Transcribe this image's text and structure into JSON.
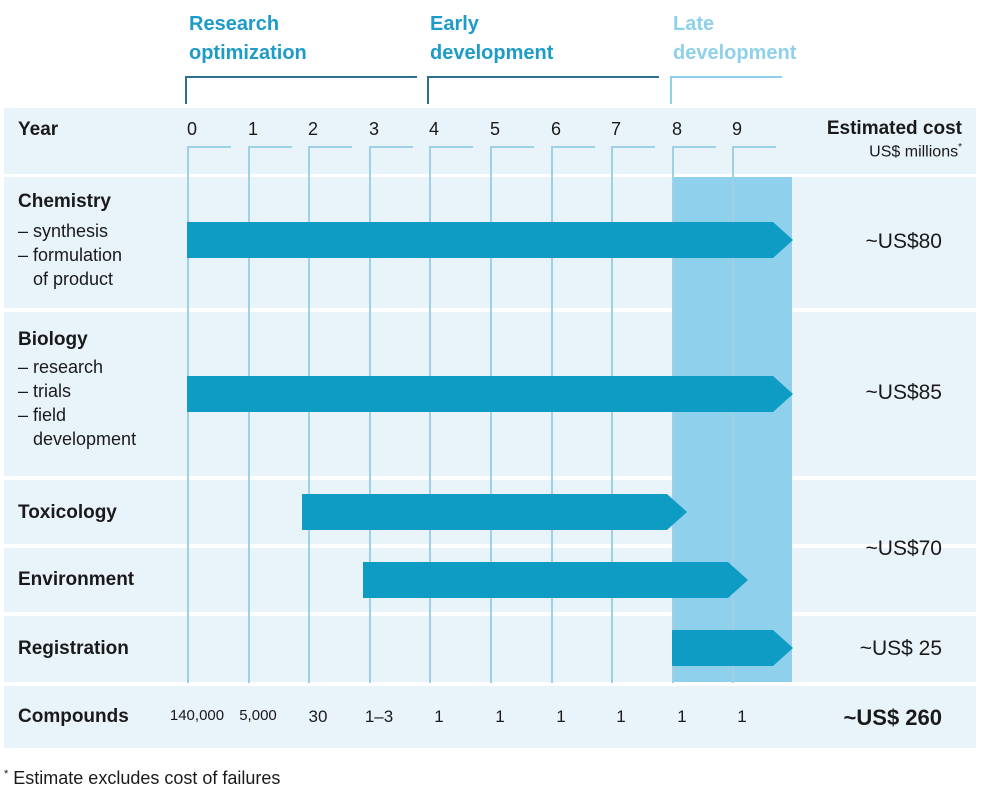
{
  "phases": [
    {
      "id": "research",
      "line1": "Research",
      "line2": "optimization",
      "color": "#1d9bc9"
    },
    {
      "id": "early",
      "line1": "Early",
      "line2": "development",
      "color": "#1d9bc9"
    },
    {
      "id": "late",
      "line1": "Late",
      "line2": "development",
      "color": "#8fd0ea"
    }
  ],
  "header": {
    "year_label": "Year",
    "years": [
      "0",
      "1",
      "2",
      "3",
      "4",
      "5",
      "6",
      "7",
      "8",
      "9"
    ],
    "cost_label": "Estimated cost",
    "cost_unit": "US$ millions",
    "cost_unit_mark": "*"
  },
  "rows": {
    "chemistry": {
      "title": "Chemistry",
      "sub": "– synthesis\n– formulation\n   of product",
      "start_year": 0,
      "end_year": 10,
      "cost": "~US$80"
    },
    "biology": {
      "title": "Biology",
      "sub": "– research\n– trials\n– field\n   development",
      "start_year": 0,
      "end_year": 10,
      "cost": "~US$85"
    },
    "toxicology": {
      "title": "Toxicology",
      "start_year": 1.9,
      "end_year": 8.25
    },
    "environment": {
      "title": "Environment",
      "start_year": 2.9,
      "end_year": 9.25
    },
    "tox_env_cost": "~US$70",
    "registration": {
      "title": "Registration",
      "start_year": 8,
      "end_year": 10,
      "cost": "~US$ 25"
    }
  },
  "compounds": {
    "label": "Compounds",
    "values": [
      "140,000",
      "5,000",
      "30",
      "1–3",
      "1",
      "1",
      "1",
      "1",
      "1",
      "1"
    ],
    "total": "~US$ 260"
  },
  "footnote": {
    "mark": "*",
    "text": " Estimate excludes cost of failures"
  },
  "colors": {
    "bar": "#0e9cc4",
    "late_shade": "#8fd0ec",
    "band": "#e9f3fa"
  }
}
